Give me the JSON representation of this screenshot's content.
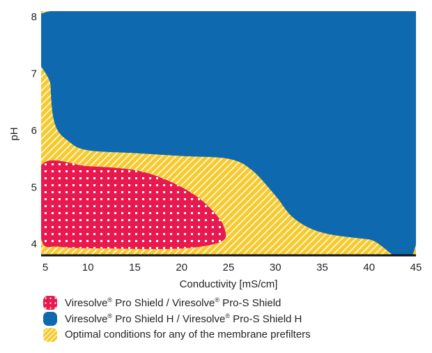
{
  "chart_data": {
    "type": "area",
    "title": "",
    "xlabel": "Conductivity [mS/cm]",
    "ylabel": "pH",
    "xlim": [
      5,
      45
    ],
    "ylim": [
      3.8,
      8.1
    ],
    "x_ticks": [
      "5",
      "10",
      "15",
      "20",
      "25",
      "30",
      "35",
      "40",
      "45"
    ],
    "y_ticks": [
      "4",
      "5",
      "6",
      "7",
      "8"
    ],
    "grid": false,
    "legend_position": "bottom",
    "colors": {
      "pro_shield": "#e8194f",
      "pro_shield_h": "#0f69af",
      "optimal": "#f5c92f",
      "hatch": "#fdf3c4",
      "axis": "#111111"
    },
    "regions": [
      {
        "name": "Viresolve® Pro Shield / Viresolve® Pro-S Shield",
        "fill": "pattern-dots",
        "boundary": [
          [
            5,
            5.38
          ],
          [
            10,
            5.37
          ],
          [
            15,
            5.3
          ],
          [
            18.5,
            5.12
          ],
          [
            21.5,
            4.85
          ],
          [
            23.5,
            4.55
          ],
          [
            24.5,
            4.3
          ],
          [
            24.3,
            4.05
          ],
          [
            20,
            3.92
          ],
          [
            12,
            3.92
          ],
          [
            7,
            3.95
          ],
          [
            5,
            4.1
          ]
        ]
      },
      {
        "name": "Viresolve® Pro Shield H / Viresolve® Pro-S Shield H",
        "fill": "solid",
        "boundary": [
          [
            6,
            8.1
          ],
          [
            45,
            8.1
          ],
          [
            45,
            4.0
          ],
          [
            40,
            4.08
          ],
          [
            35,
            4.2
          ],
          [
            32,
            4.45
          ],
          [
            30,
            4.85
          ],
          [
            27.5,
            5.3
          ],
          [
            25,
            5.5
          ],
          [
            20,
            5.55
          ],
          [
            15,
            5.6
          ],
          [
            10,
            5.65
          ],
          [
            8,
            5.8
          ],
          [
            6.5,
            6.1
          ],
          [
            6,
            6.8
          ]
        ]
      },
      {
        "name": "Optimal conditions for any of the membrane prefilters",
        "fill": "pattern-hatch",
        "boundary": [
          [
            5,
            3.8
          ],
          [
            45,
            3.8
          ],
          [
            45,
            8.1
          ],
          [
            5,
            8.1
          ]
        ]
      }
    ]
  },
  "legend": {
    "items": [
      {
        "key": "pro_shield",
        "label": "Viresolve® Pro Shield / Viresolve® Pro-S Shield"
      },
      {
        "key": "pro_shield_h",
        "label": "Viresolve® Pro Shield H / Viresolve® Pro-S Shield H"
      },
      {
        "key": "optimal",
        "label": "Optimal conditions for any of the membrane prefilters"
      }
    ]
  }
}
